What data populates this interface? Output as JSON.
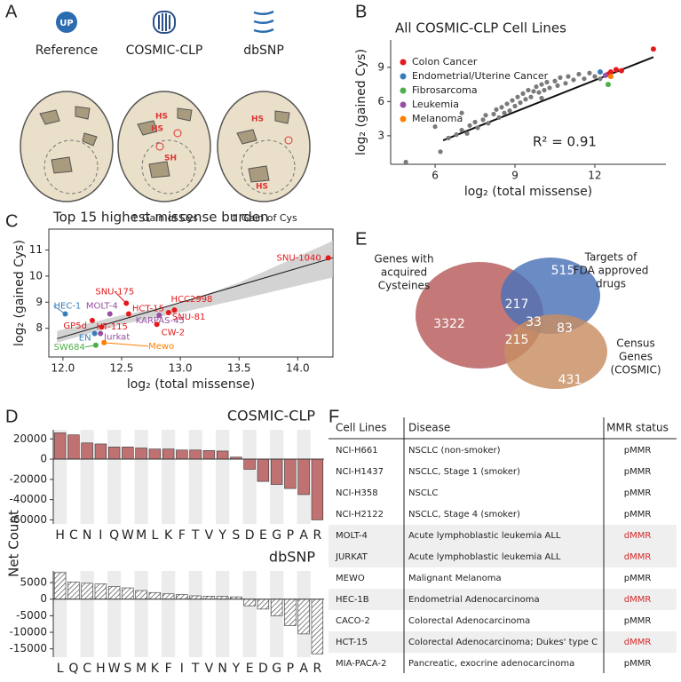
{
  "panel_labels": [
    "A",
    "B",
    "C",
    "D",
    "E",
    "F"
  ],
  "panel_a": {
    "icon_text": "UP",
    "items": [
      "Reference",
      "COSMIC-CLP",
      "dbSNP"
    ],
    "notes": [
      "↑ Gain of Cys",
      "↑ Gain of Cys"
    ],
    "cosmic_labels": [
      "HS",
      "HS",
      "SH"
    ],
    "dbsnp_labels": [
      "HS",
      "HS"
    ]
  },
  "panel_d": {
    "y_label": "Net Count"
  },
  "chart_data": [
    {
      "type": "scatter",
      "title": "All COSMIC-CLP Cell Lines",
      "x_label": "log₂ (total missense)",
      "y_label": "log₂ (gained Cys)",
      "annotation": "R² = 0.91",
      "xlim": [
        4.33,
        14.67
      ],
      "xticks": [
        6,
        9,
        12
      ],
      "ylim": [
        0.5,
        11.4
      ],
      "yticks": [
        3,
        6,
        9
      ],
      "frame": false,
      "legend": "upper left",
      "trend_line": {
        "x": [
          6.3,
          14.2
        ],
        "y": [
          2.6,
          9.9
        ]
      },
      "series": [
        {
          "color": "#7a7a7a",
          "x": [
            4.9,
            6.2,
            6.5,
            6.8,
            7.0,
            7.2,
            7.3,
            7.5,
            7.6,
            7.8,
            7.9,
            8.0,
            8.2,
            8.3,
            8.4,
            8.5,
            8.6,
            8.7,
            8.8,
            8.9,
            9.0,
            9.1,
            9.2,
            9.3,
            9.4,
            9.5,
            9.6,
            9.7,
            9.8,
            9.9,
            10.0,
            10.1,
            10.2,
            10.3,
            10.5,
            10.6,
            10.7,
            10.9,
            11.0,
            11.2,
            11.4,
            11.6,
            11.8,
            12.0,
            12.2,
            6.0,
            7.0,
            10.0
          ],
          "y": [
            0.7,
            1.6,
            2.8,
            3.1,
            3.5,
            3.2,
            3.9,
            4.2,
            3.7,
            4.4,
            4.8,
            4.1,
            4.9,
            5.3,
            4.6,
            5.5,
            5.0,
            5.8,
            5.2,
            6.1,
            5.6,
            6.4,
            5.9,
            6.7,
            6.2,
            7.0,
            6.4,
            6.9,
            7.3,
            6.8,
            7.5,
            7.0,
            7.7,
            7.2,
            7.8,
            7.4,
            8.1,
            7.6,
            8.2,
            7.9,
            8.4,
            8.0,
            8.5,
            8.2,
            8.0,
            3.8,
            5.0,
            6.3
          ]
        },
        {
          "name": "Colon Cancer",
          "color": "#e41a1c",
          "x": [
            14.2,
            12.8,
            12.6,
            13.0,
            12.5
          ],
          "y": [
            10.6,
            8.8,
            8.6,
            8.7,
            8.4
          ]
        },
        {
          "name": "Endometrial/Uterine Cancer",
          "color": "#377eb8",
          "x": [
            12.2
          ],
          "y": [
            8.6
          ]
        },
        {
          "name": "Fibrosarcoma",
          "color": "#4daf4a",
          "x": [
            12.5
          ],
          "y": [
            7.5
          ]
        },
        {
          "name": "Leukemia",
          "color": "#984ea3",
          "x": [
            12.4
          ],
          "y": [
            8.3
          ]
        },
        {
          "name": "Melanoma",
          "color": "#ff7f00",
          "x": [
            12.6
          ],
          "y": [
            8.2
          ]
        }
      ]
    },
    {
      "type": "scatter",
      "title": "Top 15 highest missense burden",
      "x_label": "log₂ (total missense)",
      "y_label": "log₂ (gained Cys)",
      "xlim": [
        11.88,
        14.3
      ],
      "xticks": [
        {
          "value": 12,
          "label": "12.0"
        },
        12.5,
        {
          "value": 13,
          "label": "13.0"
        },
        13.5,
        {
          "value": 14,
          "label": "14.0"
        }
      ],
      "ylim": [
        6.9,
        11.8
      ],
      "yticks": [
        8,
        9,
        10,
        11
      ],
      "frame": true,
      "trend_line": {
        "x": [
          11.95,
          14.3
        ],
        "y": [
          7.6,
          10.7
        ]
      },
      "band": {
        "x": [
          11.95,
          12.5,
          13.0,
          13.5,
          14.3
        ],
        "lower": [
          7.45,
          8.15,
          8.6,
          9.1,
          9.95
        ],
        "upper": [
          7.9,
          8.5,
          8.95,
          9.75,
          11.35
        ]
      },
      "points": [
        {
          "label": "SNU-1040",
          "color": "#e41a1c",
          "x": 14.26,
          "y": 10.7
        },
        {
          "label": "HEC-1",
          "color": "#377eb8",
          "x": 12.02,
          "y": 8.55
        },
        {
          "label": "MOLT-4",
          "color": "#984ea3",
          "x": 12.4,
          "y": 8.55
        },
        {
          "label": "SNU-175",
          "color": "#e41a1c",
          "x": 12.54,
          "y": 8.96
        },
        {
          "label": "HCT-15",
          "color": "#e41a1c",
          "x": 12.56,
          "y": 8.55
        },
        {
          "label": "HCC2998",
          "color": "#e41a1c",
          "x": 12.95,
          "y": 8.7
        },
        {
          "label": "KARPAS-45",
          "color": "#984ea3",
          "x": 12.82,
          "y": 8.5
        },
        {
          "label": "SNU-81",
          "color": "#e41a1c",
          "x": 12.9,
          "y": 8.6
        },
        {
          "label": "CW-2",
          "color": "#e41a1c",
          "x": 12.8,
          "y": 8.15
        },
        {
          "label": "GP5d",
          "color": "#e41a1c",
          "x": 12.25,
          "y": 8.3
        },
        {
          "label": "HT-115",
          "color": "#e41a1c",
          "x": 12.33,
          "y": 8.05
        },
        {
          "label": "EN",
          "color": "#377eb8",
          "x": 12.27,
          "y": 7.8
        },
        {
          "label": "Jurkat",
          "color": "#984ea3",
          "x": 12.32,
          "y": 7.8
        },
        {
          "label": "Mewo",
          "color": "#ff7f00",
          "x": 12.35,
          "y": 7.45
        },
        {
          "label": "SW684",
          "color": "#4daf4a",
          "x": 12.28,
          "y": 7.35
        }
      ]
    },
    {
      "type": "bar",
      "title": "COSMIC-CLP",
      "categories": [
        "H",
        "C",
        "N",
        "I",
        "Q",
        "W",
        "M",
        "L",
        "K",
        "F",
        "T",
        "V",
        "Y",
        "S",
        "D",
        "E",
        "G",
        "P",
        "A",
        "R"
      ],
      "values": [
        26000,
        24000,
        16000,
        15000,
        12000,
        12000,
        11000,
        10000,
        10000,
        9000,
        9000,
        8500,
        8000,
        2000,
        -10000,
        -22000,
        -25000,
        -29000,
        -35000,
        -60000
      ],
      "color": "#c07272",
      "hatch": false,
      "band_shading": true,
      "ylim": [
        -64000,
        29000
      ],
      "yticks": [
        20000,
        0,
        -20000,
        -40000,
        -60000
      ]
    },
    {
      "type": "bar",
      "title": "dbSNP",
      "categories": [
        "L",
        "Q",
        "C",
        "H",
        "W",
        "S",
        "M",
        "K",
        "F",
        "I",
        "T",
        "V",
        "N",
        "Y",
        "E",
        "D",
        "G",
        "P",
        "A",
        "R"
      ],
      "values": [
        8000,
        5200,
        4800,
        4600,
        3800,
        3400,
        2600,
        2000,
        1600,
        1400,
        1000,
        900,
        800,
        700,
        -2000,
        -3000,
        -5000,
        -8000,
        -10500,
        -16500
      ],
      "color": "#ffffff",
      "hatch": true,
      "band_shading": true,
      "ylim": [
        -17500,
        8500
      ],
      "yticks": [
        5000,
        0,
        -5000,
        -10000,
        -15000
      ]
    }
  ],
  "venn": {
    "sets": [
      {
        "label": [
          "Genes with",
          "acquired",
          "Cysteines"
        ],
        "color": "#b75a5a"
      },
      {
        "label": [
          "Targets of",
          "FDA approved",
          "drugs"
        ],
        "color": "#4a72b8"
      },
      {
        "label": [
          "Census",
          "Genes",
          "(COSMIC)"
        ],
        "color": "#c88d62"
      }
    ],
    "counts": [
      3322,
      217,
      515,
      33,
      83,
      215,
      431
    ]
  },
  "table": {
    "header": [
      "Cell Lines",
      "Disease",
      "MMR status"
    ],
    "status_colors": {
      "pMMR": "#222222",
      "dMMR": "#d62728"
    },
    "rows": [
      {
        "cells": [
          "NCI-H661",
          "NSCLC (non-smoker)",
          "pMMR"
        ],
        "shaded": false
      },
      {
        "cells": [
          "NCI-H1437",
          "NSCLC, Stage 1 (smoker)",
          "pMMR"
        ],
        "shaded": false
      },
      {
        "cells": [
          "NCI-H358",
          "NSCLC",
          "pMMR"
        ],
        "shaded": false
      },
      {
        "cells": [
          "NCI-H2122",
          "NSCLC, Stage 4 (smoker)",
          "pMMR"
        ],
        "shaded": false
      },
      {
        "cells": [
          "MOLT-4",
          "Acute lymphoblastic leukemia ALL",
          "dMMR"
        ],
        "shaded": true
      },
      {
        "cells": [
          "JURKAT",
          "Acute lymphoblastic leukemia ALL",
          "dMMR"
        ],
        "shaded": true
      },
      {
        "cells": [
          "MEWO",
          "Malignant Melanoma",
          "pMMR"
        ],
        "shaded": false
      },
      {
        "cells": [
          "HEC-1B",
          "Endometrial Adenocarcinoma",
          "dMMR"
        ],
        "shaded": true
      },
      {
        "cells": [
          "CACO-2",
          "Colorectal Adenocarcinoma",
          "pMMR"
        ],
        "shaded": false
      },
      {
        "cells": [
          "HCT-15",
          "Colorectal Adenocarcinoma; Dukes' type C",
          "dMMR"
        ],
        "shaded": true
      },
      {
        "cells": [
          "MIA-PACA-2",
          "Pancreatic, exocrine adenocarcinoma",
          "pMMR"
        ],
        "shaded": false
      }
    ]
  }
}
